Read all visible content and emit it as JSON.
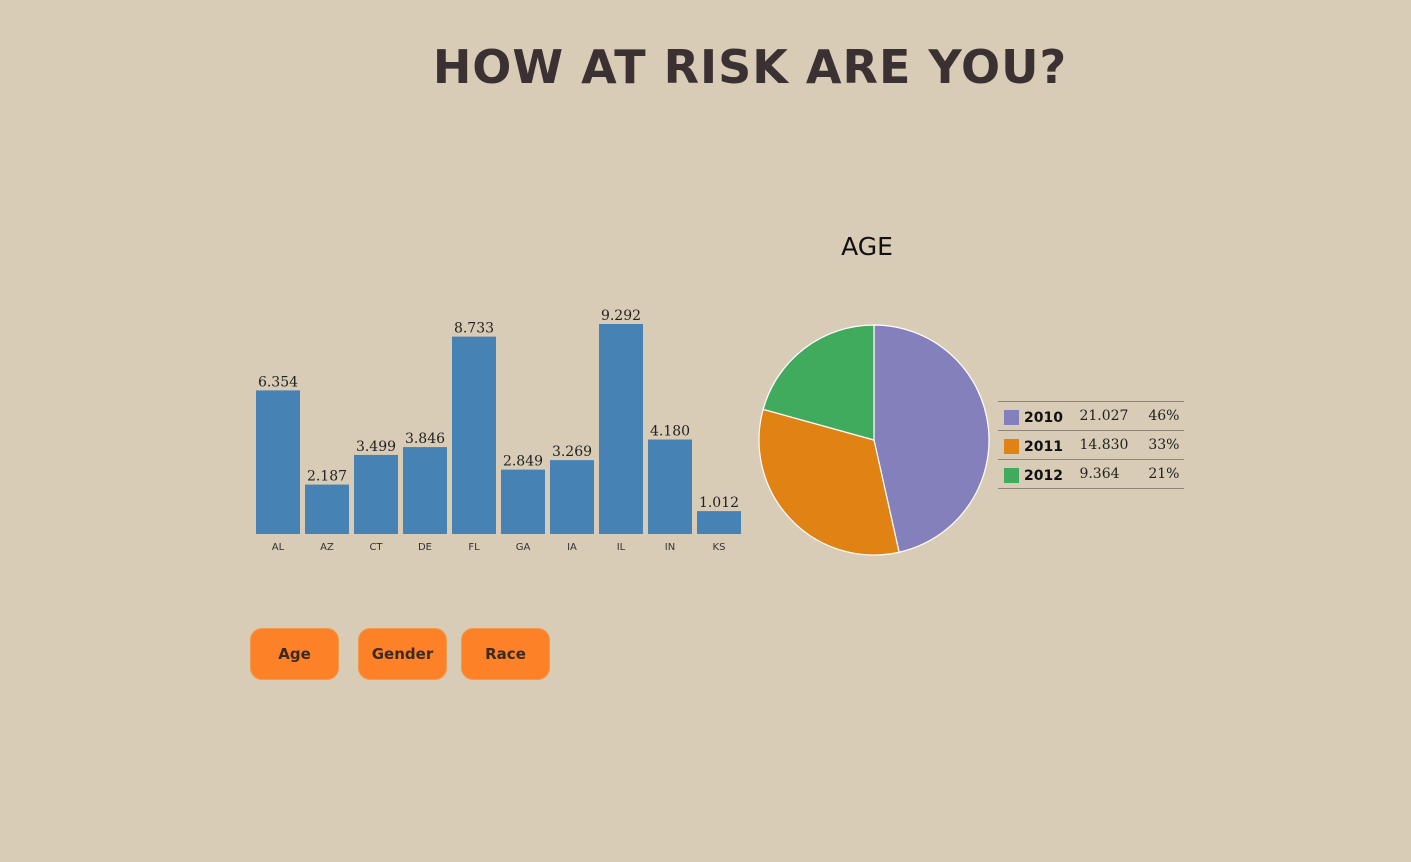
{
  "page": {
    "title": "HOW AT RISK ARE YOU?"
  },
  "buttons": [
    {
      "label": "Age"
    },
    {
      "label": "Gender"
    },
    {
      "label": "Race"
    }
  ],
  "chart_data": [
    {
      "type": "bar",
      "categories": [
        "AL",
        "AZ",
        "CT",
        "DE",
        "FL",
        "GA",
        "IA",
        "IL",
        "IN",
        "KS"
      ],
      "values": [
        6.354,
        2.187,
        3.499,
        3.846,
        8.733,
        2.849,
        3.269,
        9.292,
        4.18,
        1.012
      ],
      "value_labels": [
        "6.354",
        "2.187",
        "3.499",
        "3.846",
        "8.733",
        "2.849",
        "3.269",
        "9.292",
        "4.180",
        "1.012"
      ],
      "ylim": [
        0,
        9.292
      ],
      "color": "#4682b4",
      "grid": false
    },
    {
      "type": "pie",
      "title": "AGE",
      "slices": [
        {
          "label": "2010",
          "value": 21.027,
          "value_label": "21.027",
          "percent_label": "46%",
          "color": "#8380bc"
        },
        {
          "label": "2011",
          "value": 14.83,
          "value_label": "14.830",
          "percent_label": "33%",
          "color": "#e08214"
        },
        {
          "label": "2012",
          "value": 9.364,
          "value_label": "9.364",
          "percent_label": "21%",
          "color": "#41ab5d"
        }
      ],
      "legend_position": "right"
    }
  ]
}
